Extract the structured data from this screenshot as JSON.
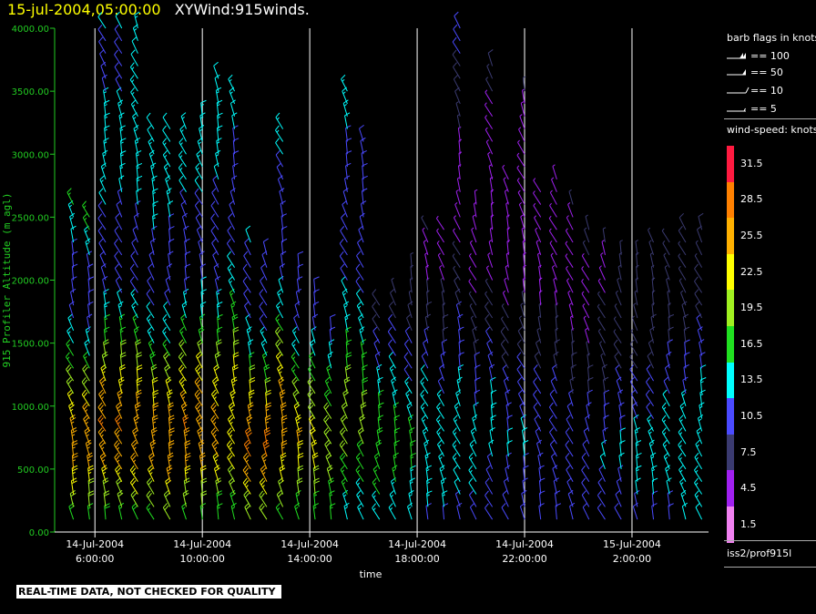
{
  "header": {
    "timestamp": "15-jul-2004,05:00:00",
    "description": "XYWind:915winds."
  },
  "notice": "REAL-TIME DATA, NOT CHECKED FOR QUALITY",
  "source_label": "iss2/prof915l",
  "colors": {
    "y_axis": "#22cc22",
    "grid": "#ffffff",
    "axis": "#ffffff"
  },
  "barb_legend": {
    "title": "barb flags in knots",
    "entries": [
      {
        "label": "== 100",
        "knots": 100
      },
      {
        "label": "== 50",
        "knots": 50
      },
      {
        "label": "== 10",
        "knots": 10
      },
      {
        "label": "== 5",
        "knots": 5
      }
    ]
  },
  "colorbar": {
    "title": "wind-speed: knots",
    "levels": [
      {
        "label": "31.5",
        "color": "#ff1a40"
      },
      {
        "label": "28.5",
        "color": "#ff8000"
      },
      {
        "label": "25.5",
        "color": "#ffb000"
      },
      {
        "label": "22.5",
        "color": "#ffff00"
      },
      {
        "label": "19.5",
        "color": "#a0f020"
      },
      {
        "label": "16.5",
        "color": "#20e020"
      },
      {
        "label": "13.5",
        "color": "#00ffff"
      },
      {
        "label": "10.5",
        "color": "#4a4aff"
      },
      {
        "label": "7.5",
        "color": "#3a3a70"
      },
      {
        "label": "4.5",
        "color": "#a020f0"
      },
      {
        "label": "1.5",
        "color": "#f080f0"
      }
    ]
  },
  "chart_data": {
    "type": "wind_barb_time_height",
    "ylabel": "915 Profiler Altitude (m agl)",
    "xlabel": "time",
    "ylim": [
      0,
      4000
    ],
    "yticks": [
      "4000.00",
      "3500.00",
      "3000.00",
      "2500.00",
      "2000.00",
      "1500.00",
      "1000.00",
      "500.00",
      "0.00"
    ],
    "ytick_values": [
      4000,
      3500,
      3000,
      2500,
      2000,
      1500,
      1000,
      500,
      0
    ],
    "xlim_hours": [
      4.5,
      28.85
    ],
    "xticks": [
      {
        "date": "14-Jul-2004",
        "time": "6:00:00",
        "hour": 6
      },
      {
        "date": "14-Jul-2004",
        "time": "10:00:00",
        "hour": 10
      },
      {
        "date": "14-Jul-2004",
        "time": "14:00:00",
        "hour": 14
      },
      {
        "date": "14-Jul-2004",
        "time": "18:00:00",
        "hour": 18
      },
      {
        "date": "14-Jul-2004",
        "time": "22:00:00",
        "hour": 22
      },
      {
        "date": "15-Jul-2004",
        "time": "2:00:00",
        "hour": 26
      }
    ],
    "grid": true,
    "legend": "right",
    "wind_profiles": [
      {
        "hour": 5.2,
        "top": 2600,
        "speeds": [
          16,
          20,
          24,
          25,
          23,
          19,
          15,
          12,
          10,
          11,
          13,
          15
        ]
      },
      {
        "hour": 5.8,
        "top": 2500,
        "speeds": [
          15,
          19,
          24,
          26,
          24,
          20,
          15,
          12,
          10,
          11,
          14,
          16
        ]
      },
      {
        "hour": 6.4,
        "top": 4000,
        "speeds": [
          16,
          20,
          26,
          27,
          25,
          20,
          15,
          12,
          10,
          10,
          13,
          15,
          14,
          12,
          11,
          12
        ]
      },
      {
        "hour": 7.0,
        "top": 4000,
        "speeds": [
          15,
          20,
          25,
          27,
          24,
          19,
          15,
          11,
          9,
          10,
          12,
          14,
          13,
          12,
          11,
          12
        ]
      },
      {
        "hour": 7.6,
        "top": 4000,
        "speeds": [
          16,
          21,
          25,
          26,
          24,
          20,
          15,
          12,
          10,
          10,
          13,
          15,
          14,
          13,
          12,
          13
        ]
      },
      {
        "hour": 8.2,
        "top": 3200,
        "speeds": [
          15,
          20,
          24,
          26,
          23,
          19,
          14,
          12,
          10,
          11,
          13,
          14,
          13,
          12
        ]
      },
      {
        "hour": 8.8,
        "top": 3200,
        "speeds": [
          16,
          21,
          26,
          27,
          24,
          20,
          15,
          12,
          10,
          10,
          12,
          14,
          13,
          12
        ]
      },
      {
        "hour": 9.4,
        "top": 3200,
        "speeds": [
          15,
          20,
          25,
          27,
          24,
          19,
          15,
          12,
          10,
          10,
          12,
          14,
          13
        ]
      },
      {
        "hour": 10.0,
        "top": 3300,
        "speeds": [
          16,
          20,
          25,
          26,
          24,
          20,
          15,
          12,
          10,
          10,
          13,
          14,
          13
        ]
      },
      {
        "hour": 10.6,
        "top": 3600,
        "speeds": [
          15,
          19,
          24,
          25,
          23,
          19,
          14,
          11,
          9,
          10,
          12,
          14,
          13,
          12
        ]
      },
      {
        "hour": 11.2,
        "top": 3500,
        "speeds": [
          15,
          19,
          23,
          24,
          22,
          18,
          14,
          11,
          9,
          10,
          12,
          13
        ]
      },
      {
        "hour": 11.8,
        "top": 2300,
        "speeds": [
          16,
          21,
          26,
          28,
          25,
          20,
          15,
          12,
          10,
          10,
          12
        ]
      },
      {
        "hour": 12.4,
        "top": 2200,
        "speeds": [
          16,
          21,
          26,
          29,
          25,
          20,
          15,
          12,
          10,
          10,
          11
        ]
      },
      {
        "hour": 13.0,
        "top": 3200,
        "speeds": [
          15,
          20,
          25,
          27,
          24,
          19,
          14,
          11,
          9,
          10,
          12,
          13
        ]
      },
      {
        "hour": 13.6,
        "top": 2100,
        "speeds": [
          14,
          18,
          22,
          24,
          22,
          18,
          14,
          11,
          9,
          10
        ]
      },
      {
        "hour": 14.2,
        "top": 1900,
        "speeds": [
          14,
          17,
          21,
          22,
          20,
          17,
          13,
          10,
          9
        ]
      },
      {
        "hour": 14.8,
        "top": 1600,
        "speeds": [
          14,
          17,
          20,
          21,
          19,
          16,
          13,
          10
        ]
      },
      {
        "hour": 15.4,
        "top": 3500,
        "speeds": [
          13,
          16,
          19,
          20,
          18,
          15,
          12,
          10,
          9,
          10,
          12,
          14
        ]
      },
      {
        "hour": 16.0,
        "top": 3100,
        "speeds": [
          13,
          15,
          18,
          19,
          17,
          14,
          12,
          10,
          9,
          10,
          11
        ]
      },
      {
        "hour": 16.6,
        "top": 1800,
        "speeds": [
          12,
          15,
          17,
          18,
          16,
          14,
          11,
          9,
          8
        ]
      },
      {
        "hour": 17.2,
        "top": 1900,
        "speeds": [
          12,
          14,
          16,
          17,
          15,
          13,
          11,
          9,
          7
        ]
      },
      {
        "hour": 17.8,
        "top": 2100,
        "speeds": [
          12,
          14,
          15,
          16,
          14,
          12,
          10,
          8,
          7,
          6
        ]
      },
      {
        "hour": 18.4,
        "top": 2400,
        "speeds": [
          11,
          13,
          14,
          15,
          14,
          12,
          10,
          8,
          6,
          5,
          6
        ]
      },
      {
        "hour": 19.0,
        "top": 2400,
        "speeds": [
          11,
          13,
          14,
          14,
          13,
          11,
          9,
          7,
          6,
          5,
          5
        ]
      },
      {
        "hour": 19.6,
        "top": 4000,
        "speeds": [
          10,
          12,
          13,
          14,
          13,
          11,
          9,
          7,
          6,
          5,
          5,
          6,
          8,
          9,
          10
        ]
      },
      {
        "hour": 20.2,
        "top": 2600,
        "speeds": [
          10,
          12,
          13,
          13,
          12,
          10,
          8,
          7,
          6,
          4,
          4,
          4
        ]
      },
      {
        "hour": 20.8,
        "top": 3700,
        "speeds": [
          10,
          11,
          12,
          13,
          12,
          10,
          8,
          6,
          5,
          4,
          4,
          5,
          6,
          8
        ]
      },
      {
        "hour": 21.4,
        "top": 2800,
        "speeds": [
          10,
          11,
          12,
          12,
          11,
          9,
          8,
          6,
          5,
          4,
          3,
          4
        ]
      },
      {
        "hour": 22.0,
        "top": 3500,
        "speeds": [
          9,
          11,
          12,
          12,
          11,
          9,
          7,
          6,
          5,
          4,
          3,
          4,
          5,
          6
        ]
      },
      {
        "hour": 22.6,
        "top": 2700,
        "speeds": [
          9,
          10,
          11,
          12,
          11,
          9,
          7,
          6,
          5,
          4,
          3,
          4
        ]
      },
      {
        "hour": 23.2,
        "top": 2800,
        "speeds": [
          9,
          10,
          11,
          11,
          10,
          9,
          7,
          6,
          5,
          4,
          4,
          5
        ]
      },
      {
        "hour": 23.8,
        "top": 2600,
        "speeds": [
          9,
          10,
          11,
          11,
          10,
          8,
          7,
          5,
          5,
          4,
          5,
          6
        ]
      },
      {
        "hour": 24.4,
        "top": 2400,
        "speeds": [
          9,
          10,
          11,
          12,
          10,
          8,
          6,
          5,
          5,
          6,
          7
        ]
      },
      {
        "hour": 25.0,
        "top": 2300,
        "speeds": [
          10,
          11,
          12,
          12,
          10,
          8,
          7,
          6,
          6,
          5,
          6
        ]
      },
      {
        "hour": 25.6,
        "top": 2200,
        "speeds": [
          10,
          11,
          12,
          12,
          11,
          9,
          7,
          6,
          6,
          6
        ]
      },
      {
        "hour": 26.2,
        "top": 2200,
        "speeds": [
          10,
          12,
          13,
          13,
          11,
          9,
          7,
          6,
          6,
          6
        ]
      },
      {
        "hour": 26.8,
        "top": 2300,
        "speeds": [
          11,
          12,
          13,
          13,
          11,
          9,
          8,
          7,
          7,
          7
        ]
      },
      {
        "hour": 27.4,
        "top": 2300,
        "speeds": [
          11,
          12,
          14,
          14,
          12,
          10,
          8,
          7,
          7,
          7
        ]
      },
      {
        "hour": 28.0,
        "top": 2400,
        "speeds": [
          12,
          13,
          14,
          14,
          12,
          10,
          8,
          7,
          7,
          8
        ]
      },
      {
        "hour": 28.6,
        "top": 2400,
        "speeds": [
          12,
          13,
          15,
          14,
          13,
          11,
          9,
          8,
          7,
          8
        ]
      }
    ]
  }
}
